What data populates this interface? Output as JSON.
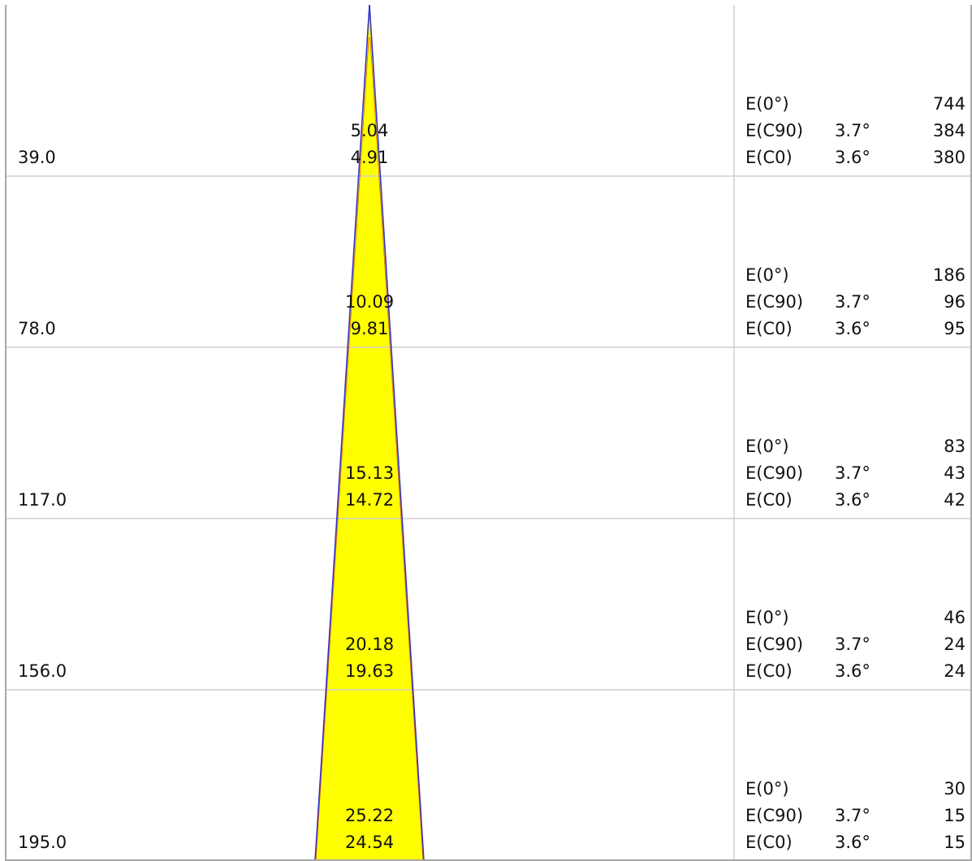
{
  "colors": {
    "cone_fill": "#ffff00",
    "cone_edge": "#3333cc",
    "cone_edge_inner": "#cc2222",
    "grid": "#cfcfcf",
    "border": "#a8a8a8"
  },
  "rows": [
    {
      "distance": "39.0",
      "diameter_c90": "5.04",
      "diameter_c0": "4.91",
      "illuminance": [
        {
          "label": "E(0°)",
          "angle": "",
          "value": "744"
        },
        {
          "label": "E(C90)",
          "angle": "3.7°",
          "value": "384"
        },
        {
          "label": "E(C0)",
          "angle": "3.6°",
          "value": "380"
        }
      ]
    },
    {
      "distance": "78.0",
      "diameter_c90": "10.09",
      "diameter_c0": "9.81",
      "illuminance": [
        {
          "label": "E(0°)",
          "angle": "",
          "value": "186"
        },
        {
          "label": "E(C90)",
          "angle": "3.7°",
          "value": "96"
        },
        {
          "label": "E(C0)",
          "angle": "3.6°",
          "value": "95"
        }
      ]
    },
    {
      "distance": "117.0",
      "diameter_c90": "15.13",
      "diameter_c0": "14.72",
      "illuminance": [
        {
          "label": "E(0°)",
          "angle": "",
          "value": "83"
        },
        {
          "label": "E(C90)",
          "angle": "3.7°",
          "value": "43"
        },
        {
          "label": "E(C0)",
          "angle": "3.6°",
          "value": "42"
        }
      ]
    },
    {
      "distance": "156.0",
      "diameter_c90": "20.18",
      "diameter_c0": "19.63",
      "illuminance": [
        {
          "label": "E(0°)",
          "angle": "",
          "value": "46"
        },
        {
          "label": "E(C90)",
          "angle": "3.7°",
          "value": "24"
        },
        {
          "label": "E(C0)",
          "angle": "3.6°",
          "value": "24"
        }
      ]
    },
    {
      "distance": "195.0",
      "diameter_c90": "25.22",
      "diameter_c0": "24.54",
      "illuminance": [
        {
          "label": "E(0°)",
          "angle": "",
          "value": "30"
        },
        {
          "label": "E(C90)",
          "angle": "3.7°",
          "value": "15"
        },
        {
          "label": "E(C0)",
          "angle": "3.6°",
          "value": "15"
        }
      ]
    }
  ]
}
